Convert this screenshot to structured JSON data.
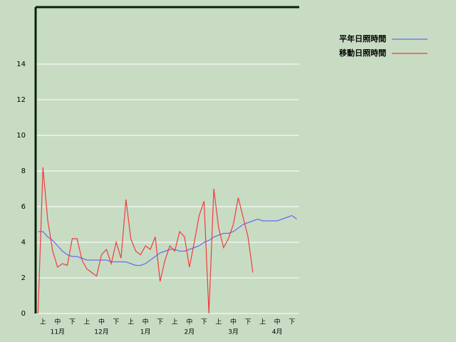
{
  "chart_data": {
    "type": "line",
    "categories": [
      null,
      "上",
      null,
      null,
      "中",
      null,
      null,
      "下",
      null,
      null,
      "上",
      null,
      null,
      "中",
      null,
      null,
      "下",
      null,
      null,
      "上",
      null,
      null,
      "中",
      null,
      null,
      "下",
      null,
      null,
      "上",
      null,
      null,
      "中",
      null,
      null,
      "下",
      null,
      null,
      "上",
      null,
      null,
      "中",
      null,
      null,
      "下",
      null,
      null,
      "上",
      null,
      null,
      "中",
      null,
      null,
      "下",
      null
    ],
    "months": [
      "11月",
      "12月",
      "1月",
      "2月",
      "3月",
      "4月"
    ],
    "series": [
      {
        "name": "平年日照時間",
        "color": "#6a6af0",
        "values": [
          4.6,
          4.6,
          4.3,
          4.1,
          3.8,
          3.5,
          3.3,
          3.2,
          3.2,
          3.1,
          3.0,
          3.0,
          3.0,
          3.0,
          3.0,
          2.9,
          2.9,
          2.9,
          2.9,
          2.8,
          2.7,
          2.7,
          2.8,
          3.0,
          3.2,
          3.4,
          3.5,
          3.6,
          3.6,
          3.5,
          3.5,
          3.6,
          3.7,
          3.8,
          4.0,
          4.1,
          4.3,
          4.4,
          4.5,
          4.5,
          4.6,
          4.8,
          5.0,
          5.1,
          5.2,
          5.3,
          5.2,
          5.2,
          5.2,
          5.2,
          5.3,
          5.4,
          5.5,
          5.3
        ]
      },
      {
        "name": "移動日照時間",
        "color": "#f03c3c",
        "values": [
          0.0,
          8.2,
          5.2,
          3.5,
          2.6,
          2.8,
          2.7,
          4.2,
          4.2,
          3.0,
          2.5,
          2.3,
          2.1,
          3.3,
          3.6,
          2.8,
          4.0,
          3.1,
          6.4,
          4.2,
          3.5,
          3.3,
          3.8,
          3.6,
          4.3,
          1.8,
          3.0,
          3.8,
          3.5,
          4.6,
          4.3,
          2.6,
          4.0,
          5.5,
          6.3,
          0.0,
          7.0,
          4.8,
          3.7,
          4.2,
          5.0,
          6.5,
          5.4,
          4.3,
          2.3,
          null,
          null,
          null,
          null,
          null,
          null,
          null,
          null,
          null
        ]
      }
    ],
    "ylim": [
      0,
      17.2
    ],
    "yticks": [
      0,
      2,
      4,
      6,
      8,
      10,
      12,
      14
    ],
    "grid": true
  }
}
